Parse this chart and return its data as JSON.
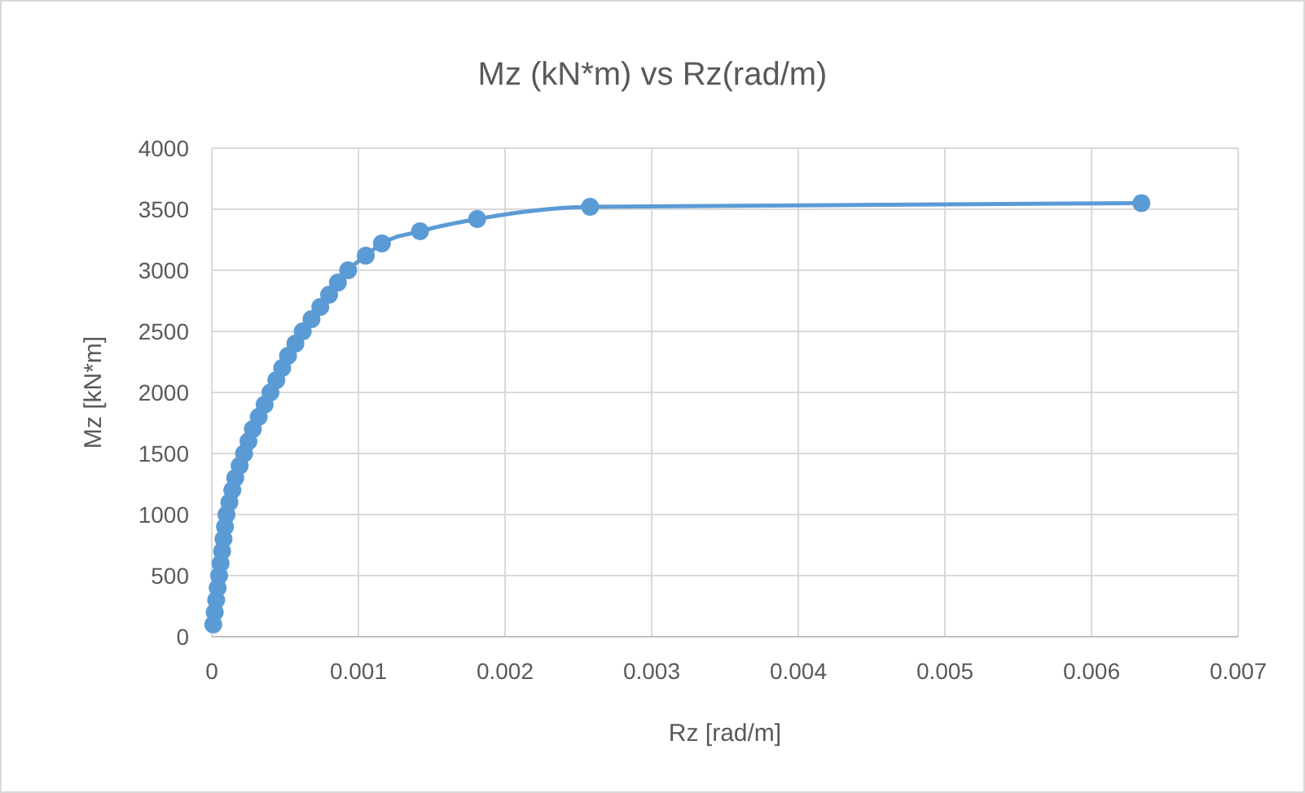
{
  "chart_data": {
    "type": "line",
    "title": "Mz (kN*m) vs Rz(rad/m)",
    "xlabel": "Rz [rad/m]",
    "ylabel": "Mz [kN*m]",
    "xlim": [
      0,
      0.007
    ],
    "xticks": [
      0,
      0.001,
      0.002,
      0.003,
      0.004,
      0.005,
      0.006,
      0.007
    ],
    "ylim": [
      0,
      4000
    ],
    "yticks": [
      0,
      500,
      1000,
      1500,
      2000,
      2500,
      3000,
      3500,
      4000
    ],
    "grid": true,
    "marker": "circle",
    "series": [
      {
        "color": "#5b9bd5",
        "x": [
          1e-05,
          2e-05,
          3e-05,
          4e-05,
          5e-05,
          6e-05,
          7e-05,
          8e-05,
          9e-05,
          0.0001,
          0.00012,
          0.00014,
          0.00016,
          0.00019,
          0.00022,
          0.00025,
          0.00028,
          0.00032,
          0.00036,
          0.0004,
          0.00044,
          0.00048,
          0.00052,
          0.00057,
          0.00062,
          0.00068,
          0.00074,
          0.0008,
          0.00086,
          0.00093,
          0.00105,
          0.00116,
          0.00142,
          0.00181,
          0.00258,
          0.00634
        ],
        "values": [
          100,
          200,
          300,
          400,
          500,
          600,
          700,
          800,
          900,
          1000,
          1100,
          1200,
          1300,
          1400,
          1500,
          1600,
          1700,
          1800,
          1900,
          2000,
          2100,
          2200,
          2300,
          2400,
          2500,
          2600,
          2700,
          2800,
          2900,
          3000,
          3120,
          3220,
          3320,
          3420,
          3520,
          3550
        ]
      }
    ]
  }
}
